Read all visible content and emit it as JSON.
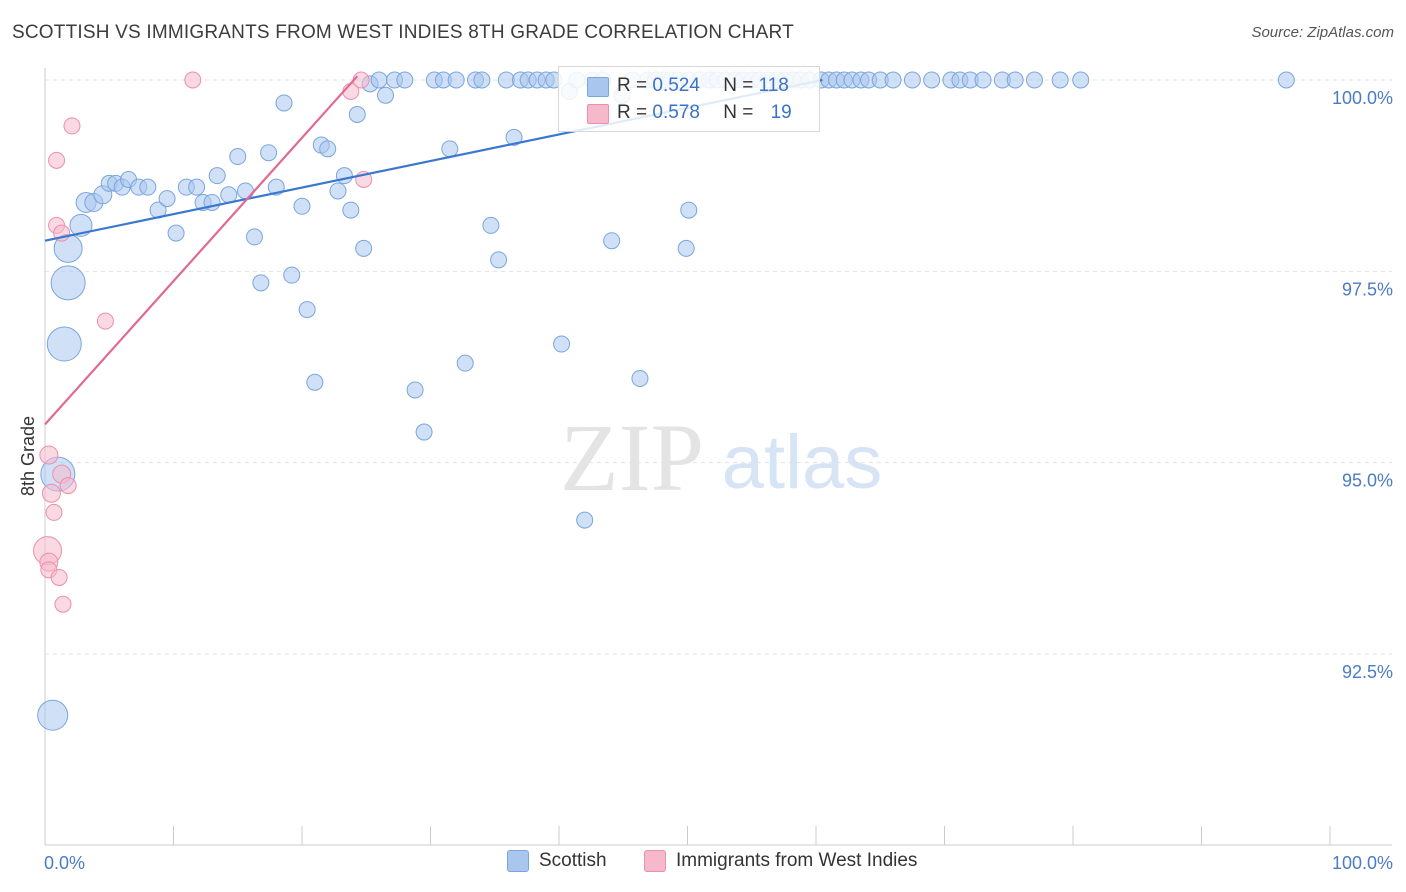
{
  "header": {
    "title": "SCOTTISH VS IMMIGRANTS FROM WEST INDIES 8TH GRADE CORRELATION CHART",
    "source": "Source: ZipAtlas.com"
  },
  "watermark": {
    "zip": "ZIP",
    "atlas": "atlas"
  },
  "stats_box": {
    "rows": [
      {
        "r_label": "R = ",
        "r_value": "0.524",
        "n_label": "N = ",
        "n_value": "118",
        "color": "#a9c6ee"
      },
      {
        "r_label": "R = ",
        "r_value": "0.578",
        "n_label": "N = ",
        "n_value": "19",
        "color": "#f6b9cc"
      }
    ]
  },
  "chart_data": {
    "type": "scatter",
    "title": "SCOTTISH VS IMMIGRANTS FROM WEST INDIES 8TH GRADE CORRELATION CHART",
    "xlabel": "",
    "ylabel": "8th Grade",
    "xlim": [
      0,
      100
    ],
    "ylim": [
      90.5,
      100.2
    ],
    "x_tick_labels": [
      "0.0%",
      "100.0%"
    ],
    "y_ticks": [
      {
        "value": 100.0,
        "label": "100.0%"
      },
      {
        "value": 97.5,
        "label": "97.5%"
      },
      {
        "value": 95.0,
        "label": "95.0%"
      },
      {
        "value": 92.5,
        "label": "92.5%"
      }
    ],
    "grid": true,
    "legend_position": "bottom",
    "series": [
      {
        "name": "Scottish",
        "color": "#a9c6ee",
        "stroke": "#7aa6dd",
        "line_color": "#3a78d0",
        "trend": {
          "x": [
            0,
            60.5
          ],
          "y": [
            97.9,
            100.0
          ]
        },
        "points": [
          [
            1.8,
            97.8,
            14
          ],
          [
            1.8,
            97.35,
            17
          ],
          [
            1.5,
            96.55,
            17
          ],
          [
            1.0,
            94.85,
            17
          ],
          [
            0.6,
            91.7,
            15
          ],
          [
            2.8,
            98.1,
            11
          ],
          [
            3.2,
            98.4,
            10
          ],
          [
            3.8,
            98.4,
            9
          ],
          [
            4.5,
            98.5,
            9
          ],
          [
            5.0,
            98.65,
            8
          ],
          [
            5.5,
            98.65,
            8
          ],
          [
            6.0,
            98.6,
            8
          ],
          [
            6.5,
            98.7,
            8
          ],
          [
            7.3,
            98.6,
            8
          ],
          [
            8.0,
            98.6,
            8
          ],
          [
            8.8,
            98.3,
            8
          ],
          [
            9.5,
            98.45,
            8
          ],
          [
            10.2,
            98.0,
            8
          ],
          [
            11.0,
            98.6,
            8
          ],
          [
            11.8,
            98.6,
            8
          ],
          [
            12.3,
            98.4,
            8
          ],
          [
            13.0,
            98.4,
            8
          ],
          [
            13.4,
            98.75,
            8
          ],
          [
            14.3,
            98.5,
            8
          ],
          [
            15.0,
            99.0,
            8
          ],
          [
            15.6,
            98.55,
            8
          ],
          [
            16.3,
            97.95,
            8
          ],
          [
            16.8,
            97.35,
            8
          ],
          [
            17.4,
            99.05,
            8
          ],
          [
            18.0,
            98.6,
            8
          ],
          [
            18.6,
            99.7,
            8
          ],
          [
            19.2,
            97.45,
            8
          ],
          [
            20.0,
            98.35,
            8
          ],
          [
            20.4,
            97.0,
            8
          ],
          [
            21.0,
            96.05,
            8
          ],
          [
            21.5,
            99.15,
            8
          ],
          [
            22.0,
            99.1,
            8
          ],
          [
            22.8,
            98.55,
            8
          ],
          [
            23.3,
            98.75,
            8
          ],
          [
            23.8,
            98.3,
            8
          ],
          [
            24.3,
            99.55,
            8
          ],
          [
            24.8,
            97.8,
            8
          ],
          [
            25.3,
            99.95,
            8
          ],
          [
            26.0,
            100.0,
            8
          ],
          [
            26.5,
            99.8,
            8
          ],
          [
            27.2,
            100.0,
            8
          ],
          [
            28.0,
            100.0,
            8
          ],
          [
            28.8,
            95.95,
            8
          ],
          [
            29.5,
            95.4,
            8
          ],
          [
            30.3,
            100.0,
            8
          ],
          [
            31.0,
            100.0,
            8
          ],
          [
            31.5,
            99.1,
            8
          ],
          [
            32.0,
            100.0,
            8
          ],
          [
            32.7,
            96.3,
            8
          ],
          [
            33.5,
            100.0,
            8
          ],
          [
            34.0,
            100.0,
            8
          ],
          [
            34.7,
            98.1,
            8
          ],
          [
            35.3,
            97.65,
            8
          ],
          [
            35.9,
            100.0,
            8
          ],
          [
            36.5,
            99.25,
            8
          ],
          [
            37.0,
            100.0,
            8
          ],
          [
            37.6,
            100.0,
            8
          ],
          [
            38.3,
            100.0,
            8
          ],
          [
            39.0,
            100.0,
            8
          ],
          [
            39.6,
            100.0,
            8
          ],
          [
            40.2,
            96.55,
            8
          ],
          [
            40.8,
            99.85,
            8
          ],
          [
            41.4,
            100.0,
            8
          ],
          [
            42.0,
            94.25,
            8
          ],
          [
            42.6,
            100.0,
            8
          ],
          [
            43.4,
            100.0,
            8
          ],
          [
            44.1,
            97.9,
            8
          ],
          [
            44.9,
            99.8,
            8
          ],
          [
            45.7,
            100.0,
            8
          ],
          [
            46.3,
            96.1,
            8
          ],
          [
            46.9,
            100.0,
            8
          ],
          [
            47.5,
            100.0,
            8
          ],
          [
            48.1,
            100.0,
            8
          ],
          [
            48.7,
            100.0,
            8
          ],
          [
            49.3,
            100.0,
            8
          ],
          [
            50.1,
            100.0,
            8
          ],
          [
            50.9,
            100.0,
            8
          ],
          [
            51.7,
            100.0,
            8
          ],
          [
            52.3,
            100.0,
            8
          ],
          [
            53.0,
            100.0,
            8
          ],
          [
            53.7,
            100.0,
            8
          ],
          [
            54.3,
            100.0,
            8
          ],
          [
            55.0,
            100.0,
            8
          ],
          [
            55.6,
            100.0,
            8
          ],
          [
            56.3,
            100.0,
            8
          ],
          [
            57.0,
            100.0,
            8
          ],
          [
            57.6,
            100.0,
            8
          ],
          [
            58.2,
            100.0,
            8
          ],
          [
            58.8,
            100.0,
            8
          ],
          [
            59.5,
            100.0,
            8
          ],
          [
            60.4,
            100.0,
            8
          ],
          [
            61.0,
            100.0,
            8
          ],
          [
            61.6,
            100.0,
            8
          ],
          [
            62.2,
            100.0,
            8
          ],
          [
            62.8,
            100.0,
            8
          ],
          [
            50.1,
            98.3,
            8
          ],
          [
            49.9,
            97.8,
            8
          ],
          [
            63.5,
            100.0,
            8
          ],
          [
            64.1,
            100.0,
            8
          ],
          [
            65.0,
            100.0,
            8
          ],
          [
            66.0,
            100.0,
            8
          ],
          [
            67.5,
            100.0,
            8
          ],
          [
            69.0,
            100.0,
            8
          ],
          [
            70.5,
            100.0,
            8
          ],
          [
            71.2,
            100.0,
            8
          ],
          [
            72.0,
            100.0,
            8
          ],
          [
            73.0,
            100.0,
            8
          ],
          [
            74.5,
            100.0,
            8
          ],
          [
            75.5,
            100.0,
            8
          ],
          [
            77.0,
            100.0,
            8
          ],
          [
            79.0,
            100.0,
            8
          ],
          [
            80.6,
            100.0,
            8
          ],
          [
            96.6,
            100.0,
            8
          ]
        ]
      },
      {
        "name": "Immigrants from West Indies",
        "color": "#f6b9cc",
        "stroke": "#ec8fac",
        "line_color": "#e06a92",
        "trend": {
          "x": [
            0,
            24.3
          ],
          "y": [
            95.5,
            100.05
          ]
        },
        "points": [
          [
            0.3,
            95.1,
            9
          ],
          [
            0.2,
            93.85,
            14
          ],
          [
            0.3,
            93.7,
            9
          ],
          [
            0.3,
            93.6,
            8
          ],
          [
            0.5,
            94.6,
            9
          ],
          [
            0.7,
            94.35,
            8
          ],
          [
            0.9,
            98.95,
            8
          ],
          [
            0.9,
            98.1,
            8
          ],
          [
            1.1,
            93.5,
            8
          ],
          [
            1.3,
            94.85,
            9
          ],
          [
            1.3,
            98.0,
            8
          ],
          [
            1.4,
            93.15,
            8
          ],
          [
            1.8,
            94.7,
            8
          ],
          [
            2.1,
            99.4,
            8
          ],
          [
            4.7,
            96.85,
            8
          ],
          [
            11.5,
            100.0,
            8
          ],
          [
            23.8,
            99.85,
            8
          ],
          [
            24.6,
            100.0,
            8
          ],
          [
            24.8,
            98.7,
            8
          ]
        ]
      }
    ]
  }
}
